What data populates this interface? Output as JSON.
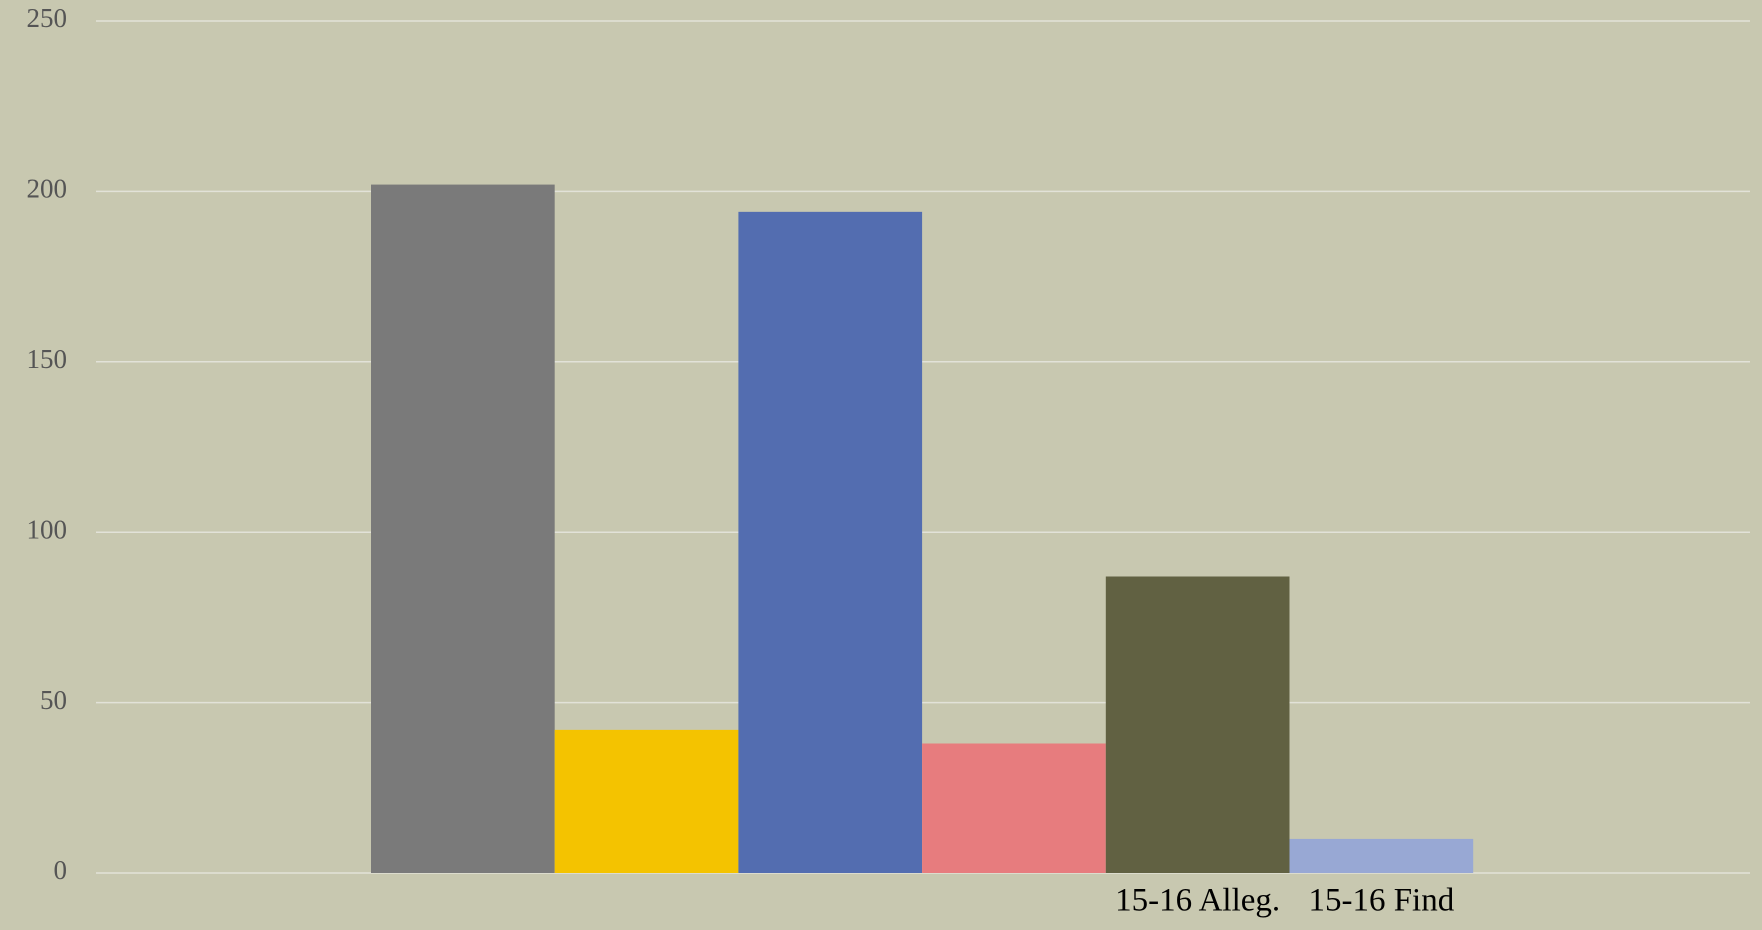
{
  "chart_data": {
    "type": "bar",
    "categories": [
      null,
      null,
      null,
      null,
      "15-16 Alleg.",
      "15-16 Find"
    ],
    "values": [
      202,
      42,
      194,
      38,
      87,
      10
    ],
    "colors": [
      "#7a7a7a",
      "#f4c300",
      "#536db0",
      "#e77c7e",
      "#616142",
      "#98a8d4"
    ],
    "ylim": [
      0,
      250
    ],
    "yticks": [
      0,
      50,
      100,
      150,
      200,
      250
    ],
    "grid": true
  }
}
